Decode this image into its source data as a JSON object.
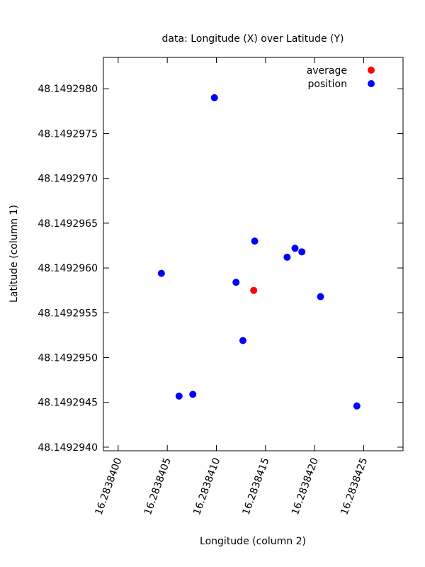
{
  "chart_data": {
    "type": "scatter",
    "title": "data: Longitude (X) over Latitude (Y)",
    "xlabel": "Longitude (column 2)",
    "ylabel": "Latitude (column 1)",
    "xlim": [
      16.28383985,
      16.2838429
    ],
    "ylim": [
      48.14929396,
      48.14929835
    ],
    "x_ticks": [
      "16.2838400",
      "16.2838405",
      "16.2838410",
      "16.2838415",
      "16.2838420",
      "16.2838425"
    ],
    "x_tick_values": [
      16.28384,
      16.2838405,
      16.283841,
      16.2838415,
      16.283842,
      16.2838425
    ],
    "y_ticks": [
      "48.1492940",
      "48.1492945",
      "48.1492950",
      "48.1492955",
      "48.1492960",
      "48.1492965",
      "48.1492970",
      "48.1492975",
      "48.1492980"
    ],
    "y_tick_values": [
      48.149294,
      48.1492945,
      48.149295,
      48.1492955,
      48.149296,
      48.1492965,
      48.149297,
      48.1492975,
      48.149298
    ],
    "grid": false,
    "legend_position": "top-right",
    "series": [
      {
        "name": "average",
        "color": "#ff0000",
        "points": [
          {
            "x": 16.28384138,
            "y": 48.14929575
          }
        ]
      },
      {
        "name": "position",
        "color": "#0000ff",
        "points": [
          {
            "x": 16.28384098,
            "y": 48.1492979
          },
          {
            "x": 16.28384139,
            "y": 48.1492963
          },
          {
            "x": 16.2838418,
            "y": 48.14929622
          },
          {
            "x": 16.28384187,
            "y": 48.14929618
          },
          {
            "x": 16.28384172,
            "y": 48.14929612
          },
          {
            "x": 16.28384044,
            "y": 48.14929594
          },
          {
            "x": 16.2838412,
            "y": 48.14929584
          },
          {
            "x": 16.28384206,
            "y": 48.14929568
          },
          {
            "x": 16.28384127,
            "y": 48.14929519
          },
          {
            "x": 16.28384076,
            "y": 48.14929459
          },
          {
            "x": 16.28384062,
            "y": 48.14929457
          },
          {
            "x": 16.28384243,
            "y": 48.14929446
          }
        ]
      }
    ]
  }
}
